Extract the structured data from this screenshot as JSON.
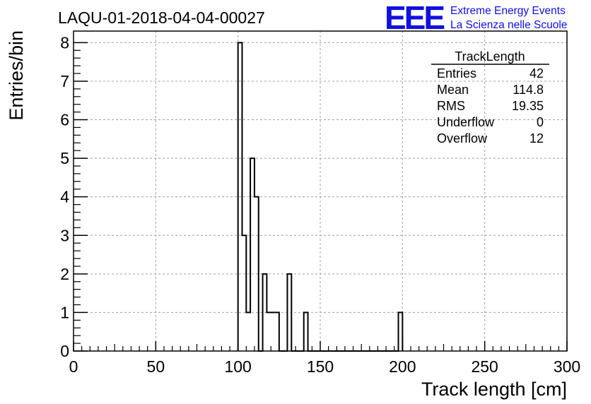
{
  "header": {
    "run_title": "LAQU-01-2018-04-04-00027",
    "logo_text": "EEE",
    "project_line1": "Extreme Energy Events",
    "project_line2": "La Scienza nelle Scuole",
    "brand_color": "#1010e0"
  },
  "stats_box": {
    "title": "TrackLength",
    "rows": [
      {
        "label": "Entries",
        "value": "42"
      },
      {
        "label": "Mean",
        "value": "114.8"
      },
      {
        "label": "RMS",
        "value": "19.35"
      },
      {
        "label": "Underflow",
        "value": "0"
      },
      {
        "label": "Overflow",
        "value": "12"
      }
    ]
  },
  "chart_data": {
    "type": "bar",
    "style": "step-histogram",
    "title": "",
    "xlabel": "Track length [cm]",
    "ylabel": "Entries/bin",
    "xlim": [
      0,
      300
    ],
    "ylim": [
      0,
      8.3
    ],
    "bin_width": 2.5,
    "grid": true,
    "xticks": [
      0,
      50,
      100,
      150,
      200,
      250,
      300
    ],
    "yticks": [
      0,
      1,
      2,
      3,
      4,
      5,
      6,
      7,
      8
    ],
    "bins": [
      {
        "x": 100,
        "count": 8
      },
      {
        "x": 102.5,
        "count": 3
      },
      {
        "x": 105,
        "count": 1
      },
      {
        "x": 107.5,
        "count": 5
      },
      {
        "x": 110,
        "count": 4
      },
      {
        "x": 112.5,
        "count": 0
      },
      {
        "x": 115,
        "count": 2
      },
      {
        "x": 117.5,
        "count": 1
      },
      {
        "x": 120,
        "count": 1
      },
      {
        "x": 122.5,
        "count": 1
      },
      {
        "x": 125,
        "count": 0
      },
      {
        "x": 127.5,
        "count": 0
      },
      {
        "x": 130,
        "count": 2
      },
      {
        "x": 132.5,
        "count": 0
      },
      {
        "x": 135,
        "count": 0
      },
      {
        "x": 137.5,
        "count": 0
      },
      {
        "x": 140,
        "count": 1
      },
      {
        "x": 197.5,
        "count": 1
      }
    ]
  }
}
